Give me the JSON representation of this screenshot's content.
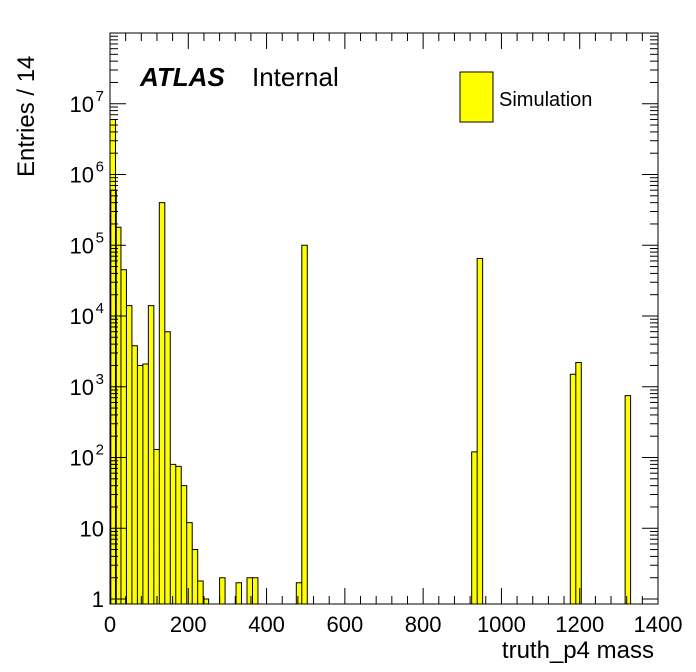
{
  "chart_data": {
    "type": "bar",
    "subtype": "histogram",
    "xlabel": "truth_p4 mass",
    "ylabel": "Entries / 14",
    "xlim": [
      0,
      1400
    ],
    "ylim": [
      0.85,
      100000000
    ],
    "yscale": "log",
    "bin_width": 14,
    "experiment_label": "ATLAS",
    "status_label": "Internal",
    "legend": {
      "entries": [
        "Simulation"
      ],
      "placement": "top-right"
    },
    "series_color": "#ffff00",
    "x_ticks": [
      "0",
      "200",
      "400",
      "600",
      "800",
      "1000",
      "1200",
      "1400"
    ],
    "x_tick_values": [
      0,
      200,
      400,
      600,
      800,
      1000,
      1200,
      1400
    ],
    "y_ticks": [
      {
        "value": 1,
        "base": "1",
        "exp": ""
      },
      {
        "value": 10,
        "base": "10",
        "exp": ""
      },
      {
        "value": 100,
        "base": "10",
        "exp": "2"
      },
      {
        "value": 1000,
        "base": "10",
        "exp": "3"
      },
      {
        "value": 10000,
        "base": "10",
        "exp": "4"
      },
      {
        "value": 100000,
        "base": "10",
        "exp": "5"
      },
      {
        "value": 1000000,
        "base": "10",
        "exp": "6"
      },
      {
        "value": 10000000,
        "base": "10",
        "exp": "7"
      }
    ],
    "bins": [
      {
        "x0": 0,
        "value": 6000000
      },
      {
        "x0": 2,
        "value": 600000
      },
      {
        "x0": 14,
        "value": 180000
      },
      {
        "x0": 28,
        "value": 45000
      },
      {
        "x0": 42,
        "value": 14000
      },
      {
        "x0": 56,
        "value": 3800
      },
      {
        "x0": 70,
        "value": 2000
      },
      {
        "x0": 84,
        "value": 2100
      },
      {
        "x0": 98,
        "value": 14000
      },
      {
        "x0": 112,
        "value": 130
      },
      {
        "x0": 126,
        "value": 400000
      },
      {
        "x0": 140,
        "value": 6000
      },
      {
        "x0": 154,
        "value": 80
      },
      {
        "x0": 168,
        "value": 75
      },
      {
        "x0": 182,
        "value": 40
      },
      {
        "x0": 196,
        "value": 12
      },
      {
        "x0": 210,
        "value": 5
      },
      {
        "x0": 224,
        "value": 1.8
      },
      {
        "x0": 238,
        "value": 1
      },
      {
        "x0": 280,
        "value": 2
      },
      {
        "x0": 322,
        "value": 1.7
      },
      {
        "x0": 350,
        "value": 2
      },
      {
        "x0": 364,
        "value": 2
      },
      {
        "x0": 476,
        "value": 1.7
      },
      {
        "x0": 490,
        "value": 100000
      },
      {
        "x0": 924,
        "value": 120
      },
      {
        "x0": 938,
        "value": 65000
      },
      {
        "x0": 1176,
        "value": 1500
      },
      {
        "x0": 1190,
        "value": 2200
      },
      {
        "x0": 1316,
        "value": 750
      }
    ]
  }
}
